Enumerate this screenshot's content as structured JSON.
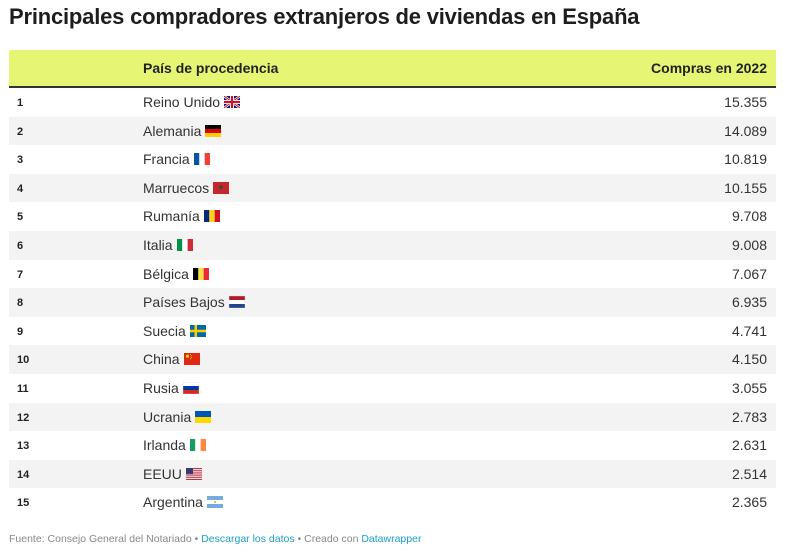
{
  "title": "Principales compradores extranjeros de viviendas en España",
  "chart_data": {
    "type": "table",
    "columns": [
      "",
      "País de procedencia",
      "Compras en 2022"
    ],
    "rows": [
      {
        "rank": "1",
        "country": "Reino Unido",
        "flag": "uk-flag-icon",
        "value": "15.355"
      },
      {
        "rank": "2",
        "country": "Alemania",
        "flag": "germany-flag-icon",
        "value": "14.089"
      },
      {
        "rank": "3",
        "country": "Francia",
        "flag": "france-flag-icon",
        "value": "10.819"
      },
      {
        "rank": "4",
        "country": "Marruecos",
        "flag": "morocco-flag-icon",
        "value": "10.155"
      },
      {
        "rank": "5",
        "country": "Rumanía",
        "flag": "romania-flag-icon",
        "value": "9.708"
      },
      {
        "rank": "6",
        "country": "Italia",
        "flag": "italy-flag-icon",
        "value": "9.008"
      },
      {
        "rank": "7",
        "country": "Bélgica",
        "flag": "belgium-flag-icon",
        "value": "7.067"
      },
      {
        "rank": "8",
        "country": "Países Bajos",
        "flag": "netherlands-flag-icon",
        "value": "6.935"
      },
      {
        "rank": "9",
        "country": "Suecia",
        "flag": "sweden-flag-icon",
        "value": "4.741"
      },
      {
        "rank": "10",
        "country": "China",
        "flag": "china-flag-icon",
        "value": "4.150"
      },
      {
        "rank": "11",
        "country": "Rusia",
        "flag": "russia-flag-icon",
        "value": "3.055"
      },
      {
        "rank": "12",
        "country": "Ucrania",
        "flag": "ukraine-flag-icon",
        "value": "2.783"
      },
      {
        "rank": "13",
        "country": "Irlanda",
        "flag": "ireland-flag-icon",
        "value": "2.631"
      },
      {
        "rank": "14",
        "country": "EEUU",
        "flag": "usa-flag-icon",
        "value": "2.514"
      },
      {
        "rank": "15",
        "country": "Argentina",
        "flag": "argentina-flag-icon",
        "value": "2.365"
      }
    ]
  },
  "footer": {
    "source": "Fuente: Consejo General del Notariado",
    "sep1": " • ",
    "download": "Descargar los datos",
    "sep2": " • ",
    "created": "Creado con ",
    "tool": "Datawrapper"
  },
  "colors": {
    "header_bg": "#e6f674",
    "row_alt": "#f3f3f3",
    "link": "#1a9ec5"
  }
}
